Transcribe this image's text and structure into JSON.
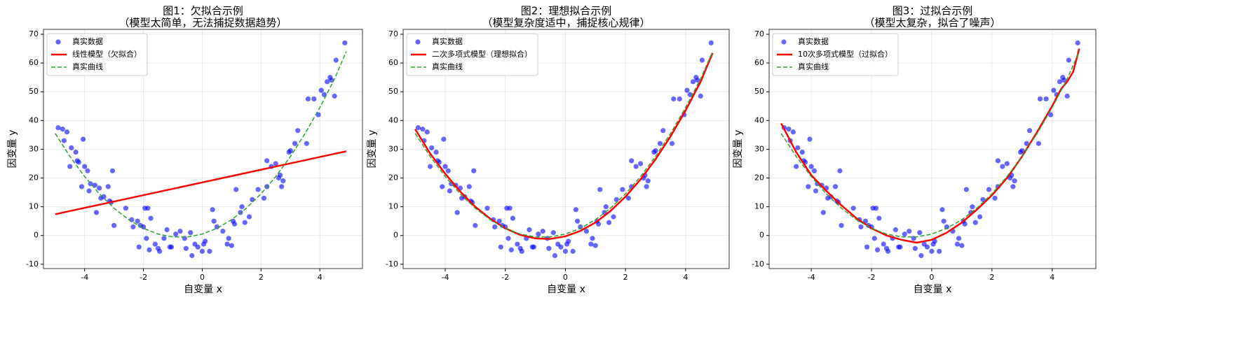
{
  "chart_data": [
    {
      "type": "scatter",
      "title": "图1：欠拟合示例",
      "subtitle": "（模型太简单，无法捕捉数据趋势）",
      "x_label": "自变量 x",
      "y_label": "因变量 y",
      "xlim": [
        -5.4,
        5.45
      ],
      "ylim": [
        -11.5,
        71.7
      ],
      "xticks": [
        -4,
        -2,
        0,
        2,
        4
      ],
      "yticks": [
        -10,
        0,
        10,
        20,
        30,
        40,
        50,
        60,
        70
      ],
      "grid": true,
      "legend": "upper-left",
      "series": [
        {
          "name": "真实数据",
          "color": "#0000ff",
          "mark": "point",
          "x": [
            -4.9,
            -4.75,
            -4.6,
            -4.7,
            -4.45,
            -4.5,
            -4.3,
            -4.25,
            -4.2,
            -4.05,
            -4.0,
            -3.9,
            -4.1,
            -3.85,
            -3.8,
            -3.65,
            -3.6,
            -3.5,
            -3.45,
            -3.35,
            -3.2,
            -3.15,
            -3.05,
            -3.1,
            -3.0,
            -2.6,
            -2.4,
            -2.35,
            -2.2,
            -2.15,
            -2.1,
            -2.0,
            -1.95,
            -1.85,
            -1.9,
            -1.8,
            -1.75,
            -1.6,
            -1.5,
            -1.45,
            -1.3,
            -1.2,
            -1.1,
            -1.05,
            -0.9,
            -0.75,
            -0.6,
            -0.55,
            -0.4,
            -0.35,
            -0.25,
            -0.15,
            0,
            0.05,
            0.1,
            0.25,
            0.35,
            0.4,
            0.5,
            0.7,
            0.85,
            0.9,
            1.0,
            1.05,
            1.1,
            1.15,
            1.3,
            1.35,
            1.45,
            1.6,
            1.7,
            1.9,
            2.1,
            2.2,
            2.2,
            2.35,
            2.5,
            2.6,
            2.65,
            2.7,
            2.75,
            2.95,
            3.0,
            3.15,
            3.25,
            3.55,
            3.6,
            3.8,
            3.95,
            4.05,
            4.15,
            4.25,
            4.35,
            4.4,
            4.5,
            4.55,
            4.85
          ],
          "y": [
            37.5,
            37,
            36,
            33,
            30.5,
            24,
            29,
            26,
            25.5,
            33.5,
            24,
            22.5,
            17,
            15.5,
            18,
            17.5,
            8,
            16.5,
            13,
            13.5,
            17,
            12,
            22.5,
            11.5,
            3.5,
            9.5,
            5.5,
            3,
            5,
            -4,
            3.5,
            3,
            9.5,
            9.5,
            -1,
            -5,
            6,
            -3,
            -4.5,
            -5.5,
            -1,
            2,
            -4,
            -4,
            0.5,
            1.5,
            -1,
            -4.5,
            1,
            -7,
            -3,
            -4,
            -5.5,
            -3,
            -2,
            -5.5,
            9,
            5,
            3,
            1.5,
            -3,
            -1,
            -3.5,
            5,
            4,
            16,
            8,
            10,
            4.5,
            6.5,
            12.5,
            16,
            13,
            17,
            26,
            24,
            25,
            20,
            21,
            17,
            19,
            29,
            29.5,
            32,
            36.5,
            32,
            47.5,
            47.5,
            42,
            50.5,
            49,
            53.5,
            55,
            54,
            48.5,
            61,
            67
          ]
        },
        {
          "name": "线性模型（欠拟合）",
          "color": "#ff0000",
          "mark": "line",
          "x": [
            -5,
            4.9
          ],
          "y": [
            7.4,
            29.3
          ]
        },
        {
          "name": "真实曲线",
          "color": "#2ca02c",
          "mark": "dashed",
          "x": [
            -5,
            -4.5,
            -4,
            -3.5,
            -3,
            -2.5,
            -2,
            -1.5,
            -1,
            -0.5,
            0,
            0.5,
            1,
            1.5,
            2,
            2.5,
            3,
            3.5,
            4,
            4.5,
            4.9
          ],
          "y": [
            35.5,
            27.5,
            20.5,
            14.5,
            9.5,
            5.5,
            2.5,
            0.5,
            -0.5,
            -0.5,
            0.5,
            2.5,
            5.5,
            9.5,
            14.5,
            20.5,
            27.5,
            35.5,
            44.5,
            54.5,
            64
          ]
        }
      ]
    },
    {
      "type": "scatter",
      "title": "图2：理想拟合示例",
      "subtitle": "（模型复杂度适中，捕捉核心规律）",
      "x_label": "自变量 x",
      "y_label": "因变量 y",
      "xlim": [
        -5.4,
        5.45
      ],
      "ylim": [
        -11.5,
        71.7
      ],
      "xticks": [
        -4,
        -2,
        0,
        2,
        4
      ],
      "yticks": [
        -10,
        0,
        10,
        20,
        30,
        40,
        50,
        60,
        70
      ],
      "grid": true,
      "legend": "upper-left",
      "series": [
        {
          "name": "真实数据",
          "color": "#0000ff",
          "mark": "point",
          "x": [
            -4.9,
            -4.75,
            -4.6,
            -4.7,
            -4.45,
            -4.5,
            -4.3,
            -4.25,
            -4.2,
            -4.05,
            -4.0,
            -3.9,
            -4.1,
            -3.85,
            -3.8,
            -3.65,
            -3.6,
            -3.5,
            -3.45,
            -3.35,
            -3.2,
            -3.15,
            -3.05,
            -3.1,
            -3.0,
            -2.6,
            -2.4,
            -2.35,
            -2.2,
            -2.15,
            -2.1,
            -2.0,
            -1.95,
            -1.85,
            -1.9,
            -1.8,
            -1.75,
            -1.6,
            -1.5,
            -1.45,
            -1.3,
            -1.2,
            -1.1,
            -1.05,
            -0.9,
            -0.75,
            -0.6,
            -0.55,
            -0.4,
            -0.35,
            -0.25,
            -0.15,
            0,
            0.05,
            0.1,
            0.25,
            0.35,
            0.4,
            0.5,
            0.7,
            0.85,
            0.9,
            1.0,
            1.05,
            1.1,
            1.15,
            1.3,
            1.35,
            1.45,
            1.6,
            1.7,
            1.9,
            2.1,
            2.2,
            2.2,
            2.35,
            2.5,
            2.6,
            2.65,
            2.7,
            2.75,
            2.95,
            3.0,
            3.15,
            3.25,
            3.55,
            3.6,
            3.8,
            3.95,
            4.05,
            4.15,
            4.25,
            4.35,
            4.4,
            4.5,
            4.55,
            4.85
          ],
          "y": [
            37.5,
            37,
            36,
            33,
            30.5,
            24,
            29,
            26,
            25.5,
            33.5,
            24,
            22.5,
            17,
            15.5,
            18,
            17.5,
            8,
            16.5,
            13,
            13.5,
            17,
            12,
            22.5,
            11.5,
            3.5,
            9.5,
            5.5,
            3,
            5,
            -4,
            3.5,
            3,
            9.5,
            9.5,
            -1,
            -5,
            6,
            -3,
            -4.5,
            -5.5,
            -1,
            2,
            -4,
            -4,
            0.5,
            1.5,
            -1,
            -4.5,
            1,
            -7,
            -3,
            -4,
            -5.5,
            -3,
            -2,
            -5.5,
            9,
            5,
            3,
            1.5,
            -3,
            -1,
            -3.5,
            5,
            4,
            16,
            8,
            10,
            4.5,
            6.5,
            12.5,
            16,
            13,
            17,
            26,
            24,
            25,
            20,
            21,
            17,
            19,
            29,
            29.5,
            32,
            36.5,
            32,
            47.5,
            47.5,
            42,
            50.5,
            49,
            53.5,
            55,
            54,
            48.5,
            61,
            67
          ]
        },
        {
          "name": "二次多项式模型（理想拟合）",
          "color": "#ff0000",
          "mark": "line",
          "x": [
            -5,
            -4.5,
            -4,
            -3.5,
            -3,
            -2.5,
            -2,
            -1.5,
            -1,
            -0.5,
            0,
            0.5,
            1,
            1.5,
            2,
            2.5,
            3,
            3.5,
            4,
            4.5,
            4.9
          ],
          "y": [
            37,
            28.5,
            21.5,
            15.3,
            10,
            5.8,
            2.5,
            0.2,
            -1,
            -1.2,
            -0.3,
            1.6,
            4.5,
            8.5,
            13.5,
            19.5,
            26.5,
            34.5,
            43.5,
            53.5,
            63.5
          ]
        },
        {
          "name": "真实曲线",
          "color": "#2ca02c",
          "mark": "dashed",
          "x": [
            -5,
            -4.5,
            -4,
            -3.5,
            -3,
            -2.5,
            -2,
            -1.5,
            -1,
            -0.5,
            0,
            0.5,
            1,
            1.5,
            2,
            2.5,
            3,
            3.5,
            4,
            4.5,
            4.9
          ],
          "y": [
            35.5,
            27.5,
            20.5,
            14.5,
            9.5,
            5.5,
            2.5,
            0.5,
            -0.5,
            -0.5,
            0.5,
            2.5,
            5.5,
            9.5,
            14.5,
            20.5,
            27.5,
            35.5,
            44.5,
            54.5,
            64
          ]
        }
      ]
    },
    {
      "type": "scatter",
      "title": "图3：过拟合示例",
      "subtitle": "（模型太复杂，拟合了噪声）",
      "x_label": "自变量 x",
      "y_label": "因变量 y",
      "xlim": [
        -5.4,
        5.45
      ],
      "ylim": [
        -11.5,
        71.7
      ],
      "xticks": [
        -4,
        -2,
        0,
        2,
        4
      ],
      "yticks": [
        -10,
        0,
        10,
        20,
        30,
        40,
        50,
        60,
        70
      ],
      "grid": true,
      "legend": "upper-left",
      "series": [
        {
          "name": "真实数据",
          "color": "#0000ff",
          "mark": "point",
          "x": [
            -4.9,
            -4.75,
            -4.6,
            -4.7,
            -4.45,
            -4.5,
            -4.3,
            -4.25,
            -4.2,
            -4.05,
            -4.0,
            -3.9,
            -4.1,
            -3.85,
            -3.8,
            -3.65,
            -3.6,
            -3.5,
            -3.45,
            -3.35,
            -3.2,
            -3.15,
            -3.05,
            -3.1,
            -3.0,
            -2.6,
            -2.4,
            -2.35,
            -2.2,
            -2.15,
            -2.1,
            -2.0,
            -1.95,
            -1.85,
            -1.9,
            -1.8,
            -1.75,
            -1.6,
            -1.5,
            -1.45,
            -1.3,
            -1.2,
            -1.1,
            -1.05,
            -0.9,
            -0.75,
            -0.6,
            -0.55,
            -0.4,
            -0.35,
            -0.25,
            -0.15,
            0,
            0.05,
            0.1,
            0.25,
            0.35,
            0.4,
            0.5,
            0.7,
            0.85,
            0.9,
            1.0,
            1.05,
            1.1,
            1.15,
            1.3,
            1.35,
            1.45,
            1.6,
            1.7,
            1.9,
            2.1,
            2.2,
            2.2,
            2.35,
            2.5,
            2.6,
            2.65,
            2.7,
            2.75,
            2.95,
            3.0,
            3.15,
            3.25,
            3.55,
            3.6,
            3.8,
            3.95,
            4.05,
            4.15,
            4.25,
            4.35,
            4.4,
            4.5,
            4.55,
            4.85
          ],
          "y": [
            37.5,
            37,
            36,
            33,
            30.5,
            24,
            29,
            26,
            25.5,
            33.5,
            24,
            22.5,
            17,
            15.5,
            18,
            17.5,
            8,
            16.5,
            13,
            13.5,
            17,
            12,
            22.5,
            11.5,
            3.5,
            9.5,
            5.5,
            3,
            5,
            -4,
            3.5,
            3,
            9.5,
            9.5,
            -1,
            -5,
            6,
            -3,
            -4.5,
            -5.5,
            -1,
            2,
            -4,
            -4,
            0.5,
            1.5,
            -1,
            -4.5,
            1,
            -7,
            -3,
            -4,
            -5.5,
            -3,
            -2,
            -5.5,
            9,
            5,
            3,
            1.5,
            -3,
            -1,
            -3.5,
            5,
            4,
            16,
            8,
            10,
            4.5,
            6.5,
            12.5,
            16,
            13,
            17,
            26,
            24,
            25,
            20,
            21,
            17,
            19,
            29,
            29.5,
            32,
            36.5,
            32,
            47.5,
            47.5,
            42,
            50.5,
            49,
            53.5,
            55,
            54,
            48.5,
            61,
            67
          ]
        },
        {
          "name": "10次多项式模型（过拟合）",
          "color": "#ff0000",
          "mark": "line",
          "x": [
            -5,
            -4.8,
            -4.5,
            -4,
            -3.5,
            -3,
            -2.5,
            -2,
            -1.5,
            -1,
            -0.5,
            0,
            0.5,
            1,
            1.5,
            2,
            2.5,
            3,
            3.5,
            4,
            4.3,
            4.5,
            4.7,
            4.9
          ],
          "y": [
            39,
            35,
            29,
            21,
            15.5,
            10.5,
            6,
            2.5,
            0,
            -1.5,
            -2.5,
            -1.5,
            1,
            4.5,
            9,
            14,
            20,
            27.5,
            36,
            45,
            51,
            53.5,
            57,
            65
          ]
        },
        {
          "name": "真实曲线",
          "color": "#2ca02c",
          "mark": "dashed",
          "x": [
            -5,
            -4.5,
            -4,
            -3.5,
            -3,
            -2.5,
            -2,
            -1.5,
            -1,
            -0.5,
            0,
            0.5,
            1,
            1.5,
            2,
            2.5,
            3,
            3.5,
            4,
            4.5,
            4.9
          ],
          "y": [
            35.5,
            27.5,
            20.5,
            14.5,
            9.5,
            5.5,
            2.5,
            0.5,
            -0.5,
            -0.5,
            0.5,
            2.5,
            5.5,
            9.5,
            14.5,
            20.5,
            27.5,
            35.5,
            44.5,
            54.5,
            64
          ]
        }
      ]
    }
  ]
}
